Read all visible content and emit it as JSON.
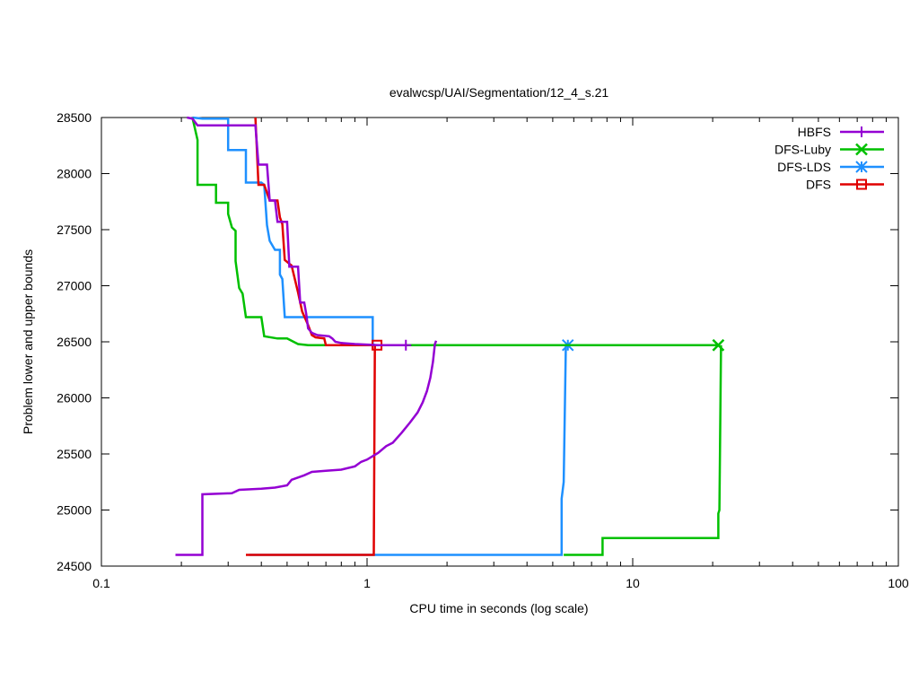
{
  "chart_data": {
    "type": "line",
    "title": "evalwcsp/UAI/Segmentation/12_4_s.21",
    "xlabel": "CPU time in seconds (log scale)",
    "ylabel": "Problem lower and upper bounds",
    "xscale": "log",
    "xlim": [
      0.1,
      100
    ],
    "ylim": [
      24500,
      28500
    ],
    "x_ticks": [
      0.1,
      1,
      10,
      100
    ],
    "x_tick_labels": [
      "0.1",
      "1",
      "10",
      "100"
    ],
    "y_ticks": [
      24500,
      25000,
      25500,
      26000,
      26500,
      27000,
      27500,
      28000,
      28500
    ],
    "y_tick_labels": [
      "24500",
      "25000",
      "25500",
      "26000",
      "26500",
      "27000",
      "27500",
      "28000",
      "28500"
    ],
    "grid": false,
    "legend_position": "top-right",
    "series": [
      {
        "name": "HBFS",
        "color": "#9400d3",
        "marker": "plus",
        "upper_bound": [
          [
            0.21,
            28500
          ],
          [
            0.22,
            28490
          ],
          [
            0.23,
            28430
          ],
          [
            0.3,
            28430
          ],
          [
            0.38,
            28430
          ],
          [
            0.39,
            28080
          ],
          [
            0.42,
            28080
          ],
          [
            0.43,
            27760
          ],
          [
            0.45,
            27760
          ],
          [
            0.46,
            27570
          ],
          [
            0.5,
            27570
          ],
          [
            0.51,
            27170
          ],
          [
            0.55,
            27170
          ],
          [
            0.56,
            26850
          ],
          [
            0.58,
            26850
          ],
          [
            0.59,
            26750
          ],
          [
            0.6,
            26620
          ],
          [
            0.62,
            26580
          ],
          [
            0.65,
            26560
          ],
          [
            0.72,
            26550
          ],
          [
            0.74,
            26530
          ],
          [
            0.76,
            26500
          ],
          [
            0.8,
            26490
          ],
          [
            0.9,
            26480
          ],
          [
            1.0,
            26475
          ],
          [
            1.1,
            26470
          ],
          [
            1.4,
            26470
          ]
        ],
        "lower_bound": [
          [
            0.19,
            24600
          ],
          [
            0.24,
            24600
          ],
          [
            0.24,
            25140
          ],
          [
            0.31,
            25150
          ],
          [
            0.33,
            25180
          ],
          [
            0.4,
            25190
          ],
          [
            0.45,
            25200
          ],
          [
            0.5,
            25220
          ],
          [
            0.52,
            25270
          ],
          [
            0.58,
            25310
          ],
          [
            0.62,
            25340
          ],
          [
            0.7,
            25350
          ],
          [
            0.8,
            25360
          ],
          [
            0.9,
            25390
          ],
          [
            0.95,
            25430
          ],
          [
            1.0,
            25450
          ],
          [
            1.1,
            25510
          ],
          [
            1.18,
            25570
          ],
          [
            1.25,
            25600
          ],
          [
            1.35,
            25690
          ],
          [
            1.45,
            25780
          ],
          [
            1.55,
            25870
          ],
          [
            1.62,
            25960
          ],
          [
            1.68,
            26060
          ],
          [
            1.73,
            26180
          ],
          [
            1.77,
            26320
          ],
          [
            1.8,
            26480
          ],
          [
            1.82,
            26510
          ]
        ]
      },
      {
        "name": "DFS-Luby",
        "color": "#00c000",
        "marker": "cross",
        "upper_bound": [
          [
            0.22,
            28500
          ],
          [
            0.23,
            28300
          ],
          [
            0.23,
            27900
          ],
          [
            0.27,
            27900
          ],
          [
            0.27,
            27740
          ],
          [
            0.3,
            27740
          ],
          [
            0.3,
            27640
          ],
          [
            0.31,
            27520
          ],
          [
            0.32,
            27490
          ],
          [
            0.32,
            27220
          ],
          [
            0.33,
            26980
          ],
          [
            0.34,
            26930
          ],
          [
            0.35,
            26720
          ],
          [
            0.4,
            26720
          ],
          [
            0.41,
            26550
          ],
          [
            0.46,
            26530
          ],
          [
            0.5,
            26530
          ],
          [
            0.55,
            26480
          ],
          [
            0.6,
            26470
          ],
          [
            21,
            26470
          ]
        ],
        "lower_bound": [
          [
            5.5,
            24600
          ],
          [
            7.7,
            24600
          ],
          [
            7.7,
            24750
          ],
          [
            21,
            24750
          ],
          [
            21,
            24970
          ],
          [
            21.2,
            25000
          ],
          [
            21.5,
            26470
          ]
        ]
      },
      {
        "name": "DFS-LDS",
        "color": "#1e90ff",
        "marker": "star",
        "upper_bound": [
          [
            0.22,
            28500
          ],
          [
            0.24,
            28490
          ],
          [
            0.3,
            28490
          ],
          [
            0.3,
            28210
          ],
          [
            0.35,
            28210
          ],
          [
            0.35,
            27920
          ],
          [
            0.4,
            27920
          ],
          [
            0.41,
            27900
          ],
          [
            0.42,
            27540
          ],
          [
            0.43,
            27400
          ],
          [
            0.45,
            27320
          ],
          [
            0.47,
            27320
          ],
          [
            0.47,
            27100
          ],
          [
            0.48,
            27060
          ],
          [
            0.49,
            26720
          ],
          [
            1.05,
            26720
          ],
          [
            1.05,
            26480
          ],
          [
            1.07,
            26470
          ],
          [
            5.7,
            26470
          ]
        ],
        "lower_bound": [
          [
            0.36,
            24600
          ],
          [
            5.4,
            24600
          ],
          [
            5.4,
            25100
          ],
          [
            5.5,
            25250
          ],
          [
            5.6,
            26470
          ]
        ]
      },
      {
        "name": "DFS",
        "color": "#e00000",
        "marker": "square",
        "upper_bound": [
          [
            0.38,
            28500
          ],
          [
            0.38,
            28500
          ],
          [
            0.39,
            27900
          ],
          [
            0.41,
            27900
          ],
          [
            0.43,
            27760
          ],
          [
            0.46,
            27760
          ],
          [
            0.47,
            27610
          ],
          [
            0.48,
            27550
          ],
          [
            0.49,
            27230
          ],
          [
            0.52,
            27180
          ],
          [
            0.55,
            26940
          ],
          [
            0.57,
            26770
          ],
          [
            0.6,
            26650
          ],
          [
            0.62,
            26560
          ],
          [
            0.64,
            26540
          ],
          [
            0.69,
            26530
          ],
          [
            0.7,
            26470
          ],
          [
            1.09,
            26470
          ]
        ],
        "lower_bound": [
          [
            0.35,
            24600
          ],
          [
            1.06,
            24600
          ],
          [
            1.07,
            26470
          ]
        ]
      }
    ]
  }
}
